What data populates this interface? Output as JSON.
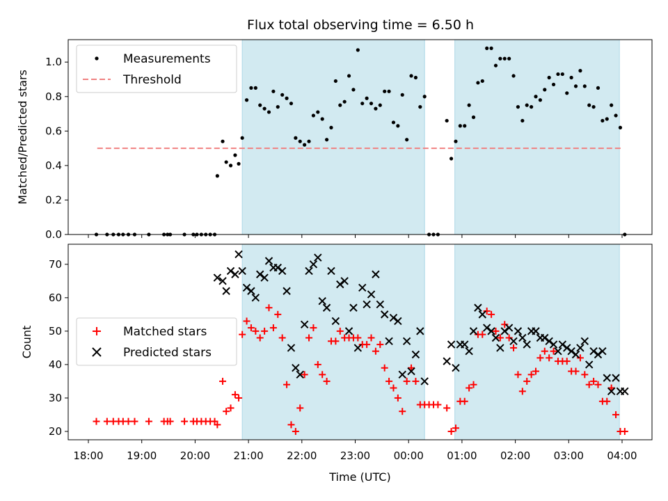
{
  "figure": {
    "title": "Flux total observing time = 6.50 h",
    "xlabel": "Time (UTC)",
    "xticks": [
      "18:00",
      "19:00",
      "20:00",
      "21:00",
      "22:00",
      "23:00",
      "00:00",
      "01:00",
      "02:00",
      "03:00",
      "04:00"
    ],
    "shaded_color": "#add8e6",
    "shaded_intervals_utc": [
      [
        "20:53",
        "00:18"
      ],
      [
        "00:52",
        "03:57"
      ]
    ]
  },
  "chart_data": [
    {
      "type": "scatter",
      "panel": "top",
      "ylabel": "Matched/Predicted stars",
      "ylim": [
        0,
        1.13
      ],
      "yticks": [
        "0.0",
        "0.2",
        "0.4",
        "0.6",
        "0.8",
        "1.0"
      ],
      "legend_position": "top-left",
      "threshold": {
        "name": "Threshold",
        "value": 0.5,
        "x_range": [
          "18:10",
          "04:00"
        ],
        "color": "#f08080",
        "style": "dashed"
      },
      "series": [
        {
          "name": "Measurements",
          "color": "#000000",
          "x": [
            "18:09",
            "18:21",
            "18:28",
            "18:34",
            "18:39",
            "18:45",
            "18:52",
            "19:08",
            "19:25",
            "19:29",
            "19:32",
            "19:48",
            "19:58",
            "20:02",
            "20:07",
            "20:12",
            "20:17",
            "20:22",
            "20:25",
            "20:31",
            "20:35",
            "20:40",
            "20:45",
            "20:49",
            "20:53",
            "20:58",
            "21:03",
            "21:08",
            "21:13",
            "21:18",
            "21:23",
            "21:28",
            "21:33",
            "21:38",
            "21:43",
            "21:48",
            "21:53",
            "21:58",
            "22:03",
            "22:08",
            "22:13",
            "22:18",
            "22:23",
            "22:28",
            "22:33",
            "22:38",
            "22:43",
            "22:48",
            "22:53",
            "22:58",
            "23:03",
            "23:08",
            "23:13",
            "23:18",
            "23:23",
            "23:28",
            "23:33",
            "23:38",
            "23:43",
            "23:48",
            "23:53",
            "23:58",
            "00:03",
            "00:08",
            "00:13",
            "00:18",
            "00:23",
            "00:28",
            "00:33",
            "00:43",
            "00:48",
            "00:53",
            "00:58",
            "01:03",
            "01:08",
            "01:13",
            "01:18",
            "01:23",
            "01:28",
            "01:33",
            "01:38",
            "01:43",
            "01:48",
            "01:53",
            "01:58",
            "02:03",
            "02:08",
            "02:13",
            "02:18",
            "02:23",
            "02:28",
            "02:33",
            "02:38",
            "02:43",
            "02:48",
            "02:53",
            "02:58",
            "03:03",
            "03:08",
            "03:13",
            "03:18",
            "03:23",
            "03:28",
            "03:33",
            "03:38",
            "03:43",
            "03:48",
            "03:53",
            "03:58",
            "04:03"
          ],
          "y": [
            0,
            0,
            0,
            0,
            0,
            0,
            0,
            0,
            0,
            0,
            0,
            0,
            0,
            0,
            0,
            0,
            0,
            0,
            0.34,
            0.54,
            0.42,
            0.4,
            0.46,
            0.41,
            0.56,
            0.78,
            0.85,
            0.85,
            0.75,
            0.73,
            0.71,
            0.83,
            0.74,
            0.81,
            0.79,
            0.76,
            0.56,
            0.54,
            0.52,
            0.54,
            0.69,
            0.71,
            0.67,
            0.55,
            0.62,
            0.89,
            0.75,
            0.77,
            0.92,
            0.84,
            1.07,
            0.76,
            0.79,
            0.76,
            0.73,
            0.75,
            0.83,
            0.83,
            0.65,
            0.63,
            0.81,
            0.55,
            0.92,
            0.91,
            0.74,
            0.8,
            0,
            0,
            0,
            0.66,
            0.44,
            0.54,
            0.63,
            0.63,
            0.75,
            0.68,
            0.88,
            0.89,
            1.08,
            1.08,
            0.98,
            1.02,
            1.02,
            1.02,
            0.92,
            0.74,
            0.66,
            0.75,
            0.74,
            0.8,
            0.78,
            0.84,
            0.91,
            0.87,
            0.93,
            0.93,
            0.82,
            0.91,
            0.86,
            0.95,
            0.86,
            0.75,
            0.74,
            0.85,
            0.66,
            0.67,
            0.75,
            0.69,
            0.62,
            0.0
          ]
        }
      ]
    },
    {
      "type": "scatter",
      "panel": "bottom",
      "ylabel": "Count",
      "ylim": [
        17.5,
        76
      ],
      "yticks": [
        "20",
        "30",
        "40",
        "50",
        "60",
        "70"
      ],
      "legend_position": "center-left",
      "series": [
        {
          "name": "Matched stars",
          "color": "#ff0000",
          "marker": "plus",
          "x": [
            "18:09",
            "18:21",
            "18:28",
            "18:34",
            "18:39",
            "18:45",
            "18:52",
            "19:08",
            "19:25",
            "19:29",
            "19:32",
            "19:48",
            "19:58",
            "20:02",
            "20:07",
            "20:12",
            "20:17",
            "20:22",
            "20:25",
            "20:31",
            "20:35",
            "20:40",
            "20:45",
            "20:49",
            "20:53",
            "20:58",
            "21:03",
            "21:08",
            "21:13",
            "21:18",
            "21:23",
            "21:28",
            "21:33",
            "21:38",
            "21:43",
            "21:48",
            "21:53",
            "21:58",
            "22:03",
            "22:08",
            "22:13",
            "22:18",
            "22:23",
            "22:28",
            "22:33",
            "22:38",
            "22:43",
            "22:48",
            "22:53",
            "22:58",
            "23:03",
            "23:08",
            "23:13",
            "23:18",
            "23:23",
            "23:28",
            "23:33",
            "23:38",
            "23:43",
            "23:48",
            "23:53",
            "23:58",
            "00:03",
            "00:08",
            "00:13",
            "00:18",
            "00:23",
            "00:28",
            "00:33",
            "00:43",
            "00:48",
            "00:53",
            "00:58",
            "01:03",
            "01:08",
            "01:13",
            "01:18",
            "01:23",
            "01:28",
            "01:33",
            "01:38",
            "01:43",
            "01:48",
            "01:53",
            "01:58",
            "02:03",
            "02:08",
            "02:13",
            "02:18",
            "02:23",
            "02:28",
            "02:33",
            "02:38",
            "02:43",
            "02:48",
            "02:53",
            "02:58",
            "03:03",
            "03:08",
            "03:13",
            "03:18",
            "03:23",
            "03:28",
            "03:33",
            "03:38",
            "03:43",
            "03:48",
            "03:53",
            "03:58",
            "04:03"
          ],
          "y": [
            23,
            23,
            23,
            23,
            23,
            23,
            23,
            23,
            23,
            23,
            23,
            23,
            23,
            23,
            23,
            23,
            23,
            23,
            22,
            35,
            26,
            27,
            31,
            30,
            49,
            53,
            51,
            50,
            48,
            50,
            57,
            51,
            55,
            48,
            34,
            22,
            20,
            27,
            37,
            48,
            51,
            40,
            37,
            35,
            47,
            47,
            50,
            48,
            48,
            48,
            48,
            46,
            46,
            48,
            44,
            46,
            39,
            35,
            33,
            30,
            26,
            35,
            39,
            35,
            28,
            28,
            28,
            28,
            28,
            27,
            20,
            21,
            29,
            29,
            33,
            34,
            49,
            49,
            56,
            55,
            50,
            48,
            52,
            48,
            45,
            37,
            32,
            35,
            37,
            38,
            42,
            44,
            42,
            44,
            41,
            41,
            41,
            38,
            38,
            42,
            37,
            34,
            35,
            34,
            29,
            29,
            33,
            25,
            20,
            20
          ]
        },
        {
          "name": "Predicted stars",
          "color": "#000000",
          "marker": "x",
          "x": [
            "20:25",
            "20:31",
            "20:35",
            "20:40",
            "20:45",
            "20:49",
            "20:53",
            "20:58",
            "21:03",
            "21:08",
            "21:13",
            "21:18",
            "21:23",
            "21:28",
            "21:33",
            "21:38",
            "21:43",
            "21:48",
            "21:53",
            "21:58",
            "22:03",
            "22:08",
            "22:13",
            "22:18",
            "22:23",
            "22:28",
            "22:33",
            "22:38",
            "22:43",
            "22:48",
            "22:53",
            "22:58",
            "23:03",
            "23:08",
            "23:13",
            "23:18",
            "23:23",
            "23:28",
            "23:33",
            "23:38",
            "23:43",
            "23:48",
            "23:53",
            "23:58",
            "00:03",
            "00:08",
            "00:13",
            "00:18",
            "00:43",
            "00:48",
            "00:53",
            "00:58",
            "01:03",
            "01:08",
            "01:13",
            "01:18",
            "01:23",
            "01:28",
            "01:33",
            "01:38",
            "01:43",
            "01:48",
            "01:53",
            "01:58",
            "02:03",
            "02:08",
            "02:13",
            "02:18",
            "02:23",
            "02:28",
            "02:33",
            "02:38",
            "02:43",
            "02:48",
            "02:53",
            "02:58",
            "03:03",
            "03:08",
            "03:13",
            "03:18",
            "03:23",
            "03:28",
            "03:33",
            "03:38",
            "03:43",
            "03:48",
            "03:53",
            "03:58",
            "04:03"
          ],
          "y": [
            66,
            65,
            62,
            68,
            67,
            73,
            68,
            63,
            62,
            60,
            67,
            66,
            71,
            69,
            69,
            68,
            62,
            45,
            39,
            37,
            52,
            68,
            70,
            72,
            59,
            57,
            68,
            53,
            64,
            65,
            50,
            57,
            45,
            63,
            58,
            61,
            67,
            58,
            55,
            47,
            54,
            53,
            37,
            47,
            38,
            43,
            50,
            35,
            41,
            46,
            39,
            46,
            46,
            44,
            50,
            57,
            55,
            51,
            50,
            48,
            45,
            50,
            51,
            47,
            50,
            48,
            46,
            50,
            50,
            48,
            48,
            47,
            46,
            44,
            46,
            45,
            44,
            43,
            45,
            47,
            40,
            44,
            43,
            44,
            36,
            32,
            36,
            32,
            32
          ]
        }
      ]
    }
  ]
}
